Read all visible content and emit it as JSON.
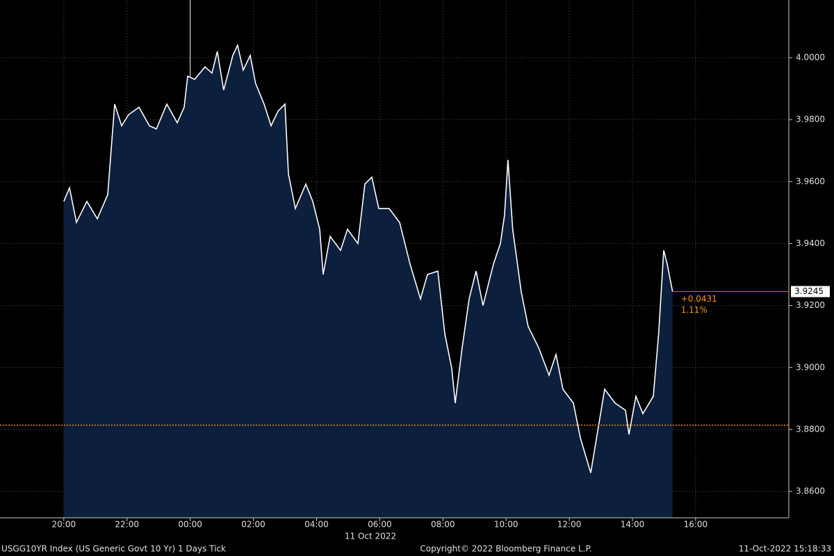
{
  "chart_data": {
    "type": "area",
    "x": [
      0,
      0.18,
      0.4,
      0.73,
      1.06,
      1.39,
      1.61,
      1.83,
      2.05,
      2.38,
      2.71,
      2.93,
      3.26,
      3.59,
      3.81,
      3.92,
      4.14,
      4.47,
      4.69,
      4.86,
      5.06,
      5.35,
      5.5,
      5.68,
      5.9,
      6.07,
      6.34,
      6.56,
      6.78,
      7.0,
      7.11,
      7.33,
      7.66,
      7.88,
      8.1,
      8.21,
      8.43,
      8.76,
      8.98,
      9.31,
      9.53,
      9.75,
      9.97,
      10.3,
      10.63,
      10.96,
      11.29,
      11.51,
      11.84,
      12.06,
      12.28,
      12.39,
      12.61,
      12.83,
      13.05,
      13.27,
      13.6,
      13.82,
      13.95,
      14.06,
      14.21,
      14.48,
      14.7,
      15.03,
      15.36,
      15.58,
      15.8,
      16.13,
      16.35,
      16.68,
      16.9,
      17.12,
      17.45,
      17.78,
      17.89,
      18.11,
      18.33,
      18.66,
      18.83,
      18.99,
      19.1,
      19.27
    ],
    "values": [
      3.9536,
      3.958,
      3.9468,
      3.9536,
      3.948,
      3.9558,
      3.985,
      3.978,
      3.9816,
      3.984,
      3.978,
      3.977,
      3.985,
      3.979,
      3.984,
      3.994,
      3.993,
      3.997,
      3.995,
      4.002,
      3.9895,
      4.0007,
      4.004,
      3.996,
      4.0007,
      3.9917,
      3.985,
      3.978,
      3.9827,
      3.985,
      3.9625,
      3.9513,
      3.9592,
      3.9536,
      3.9446,
      3.93,
      3.9423,
      3.9378,
      3.9446,
      3.94,
      3.9592,
      3.9614,
      3.9513,
      3.9513,
      3.9468,
      3.9334,
      3.9221,
      3.93,
      3.9311,
      3.9109,
      3.8997,
      3.8885,
      3.9064,
      3.9221,
      3.9311,
      3.92,
      3.9334,
      3.94,
      3.9491,
      3.967,
      3.9446,
      3.9244,
      3.9132,
      3.9064,
      3.8975,
      3.9042,
      3.893,
      3.8885,
      3.8773,
      3.866,
      3.8795,
      3.893,
      3.8885,
      3.8862,
      3.8784,
      3.8907,
      3.8851,
      3.8907,
      3.9109,
      3.9378,
      3.9334,
      3.9245
    ],
    "color": "#ffffff",
    "fill": "#0c1f3d",
    "xlim": [
      -2.02,
      22.95
    ],
    "ylim": [
      3.8515,
      4.0186
    ],
    "xticks": [
      {
        "value": 0,
        "label": "20:00"
      },
      {
        "value": 2,
        "label": "22:00"
      },
      {
        "value": 4,
        "label": "00:00"
      },
      {
        "value": 6,
        "label": "02:00"
      },
      {
        "value": 8,
        "label": "04:00"
      },
      {
        "value": 10,
        "label": "06:00"
      },
      {
        "value": 12,
        "label": "08:00"
      },
      {
        "value": 14,
        "label": "10:00"
      },
      {
        "value": 16,
        "label": "12:00"
      },
      {
        "value": 18,
        "label": "14:00"
      },
      {
        "value": 20,
        "label": "16:00"
      }
    ],
    "yticks": [
      {
        "value": 3.86,
        "label": "3.8600"
      },
      {
        "value": 3.88,
        "label": "3.8800"
      },
      {
        "value": 3.9,
        "label": "3.9000"
      },
      {
        "value": 3.92,
        "label": "3.9200"
      },
      {
        "value": 3.94,
        "label": "3.9400"
      },
      {
        "value": 3.96,
        "label": "3.9600"
      },
      {
        "value": 3.98,
        "label": "3.9800"
      },
      {
        "value": 4,
        "label": "4.0000"
      }
    ],
    "grid": true,
    "session_break": 4,
    "date_label": "11 Oct 2022",
    "last_value": 3.9245,
    "previous_close": 3.8814,
    "change": {
      "value": 0.0431,
      "label": "+0.0431"
    },
    "change_pct": {
      "value": 1.11,
      "label": "1.11%"
    },
    "footer_left": "USGG10YR Index (US Generic Govt 10 Yr) 1 Days  Tick",
    "footer_center": "Copyright© 2022 Bloomberg Finance L.P.",
    "footer_right": "11-Oct-2022 15:18:33"
  }
}
